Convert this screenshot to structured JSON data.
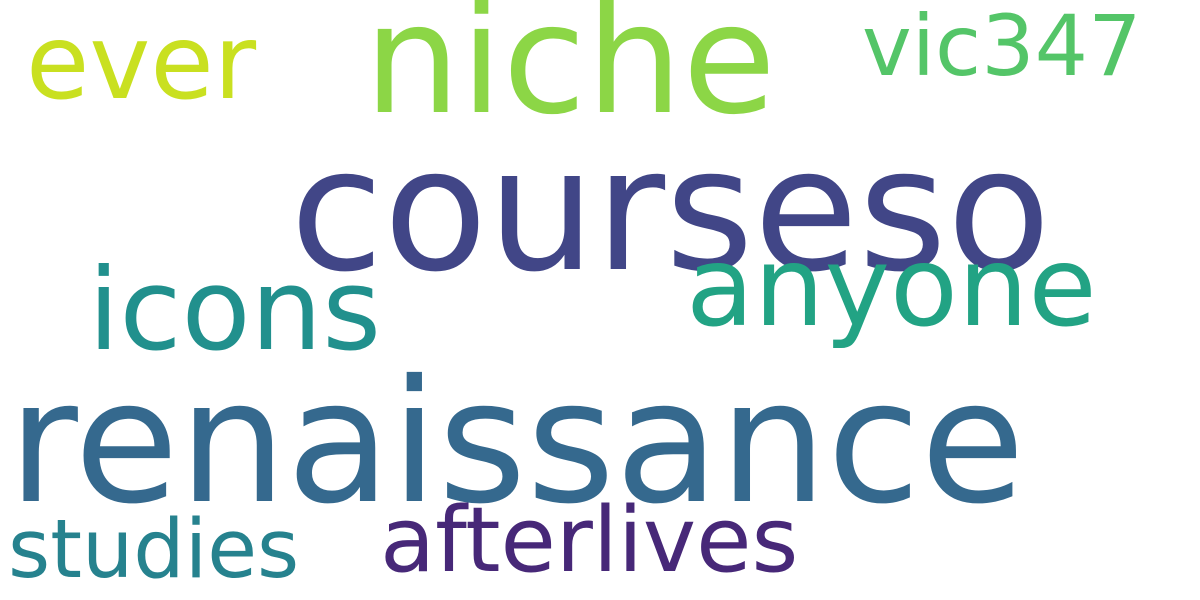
{
  "word_cloud": {
    "background": "#ffffff",
    "words": {
      "renaissance": {
        "text": "renaissance",
        "color": "#35698e"
      },
      "courseso": {
        "text": "courseso",
        "color": "#414687"
      },
      "niche": {
        "text": "niche",
        "color": "#8cd646"
      },
      "anyone": {
        "text": "anyone",
        "color": "#22a384"
      },
      "icons": {
        "text": "icons",
        "color": "#21908d"
      },
      "ever": {
        "text": "ever",
        "color": "#c9e020"
      },
      "afterlives": {
        "text": "afterlives",
        "color": "#472878"
      },
      "studies": {
        "text": "studies",
        "color": "#26828e"
      },
      "vic347": {
        "text": "vic347",
        "color": "#54c568"
      }
    }
  }
}
